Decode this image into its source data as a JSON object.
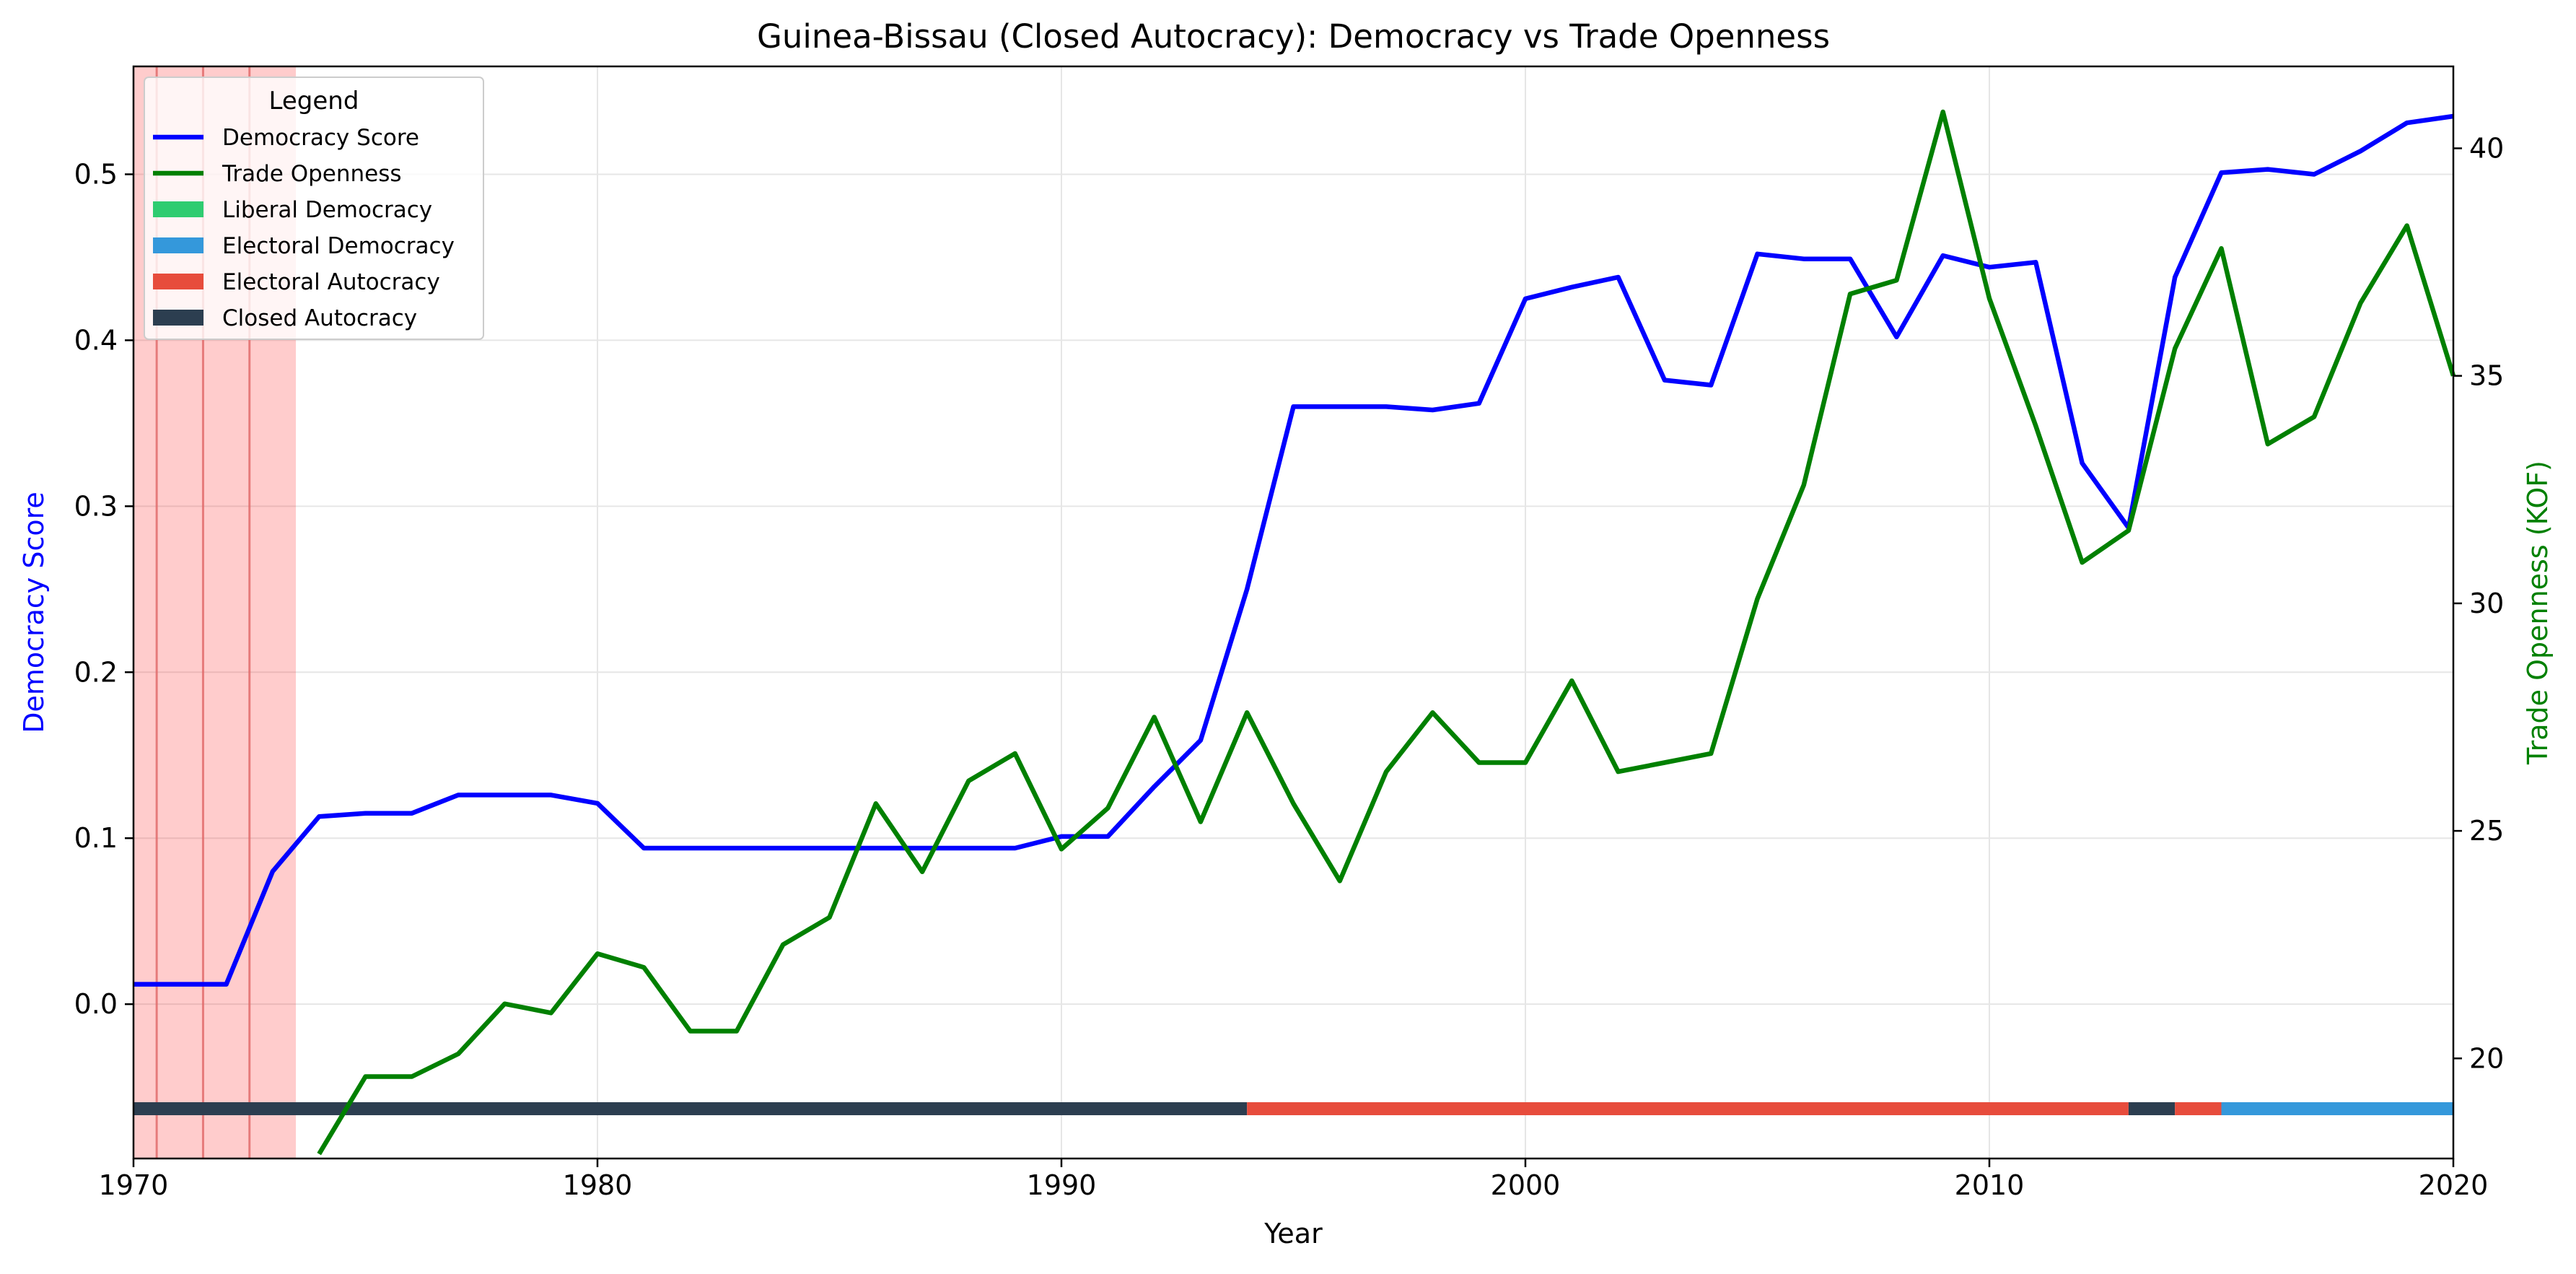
{
  "chart_data": {
    "type": "line",
    "title": "Guinea-Bissau (Closed Autocracy): Democracy vs Trade Openness",
    "xlabel": "Year",
    "ylabel_left": "Democracy Score",
    "ylabel_right": "Trade Openness (KOF)",
    "xlim": [
      1970,
      2020
    ],
    "ylim_left": [
      -0.093,
      0.565
    ],
    "ylim_right": [
      17.8,
      41.8
    ],
    "x_ticks": [
      1970,
      1980,
      1990,
      2000,
      2010,
      2020
    ],
    "y_left_ticks": [
      0.0,
      0.1,
      0.2,
      0.3,
      0.4,
      0.5
    ],
    "y_left_tick_labels": [
      "0.0",
      "0.1",
      "0.2",
      "0.3",
      "0.4",
      "0.5"
    ],
    "y_right_ticks": [
      20,
      25,
      30,
      35,
      40
    ],
    "y_right_tick_labels": [
      "20",
      "25",
      "30",
      "35",
      "40"
    ],
    "grid": true,
    "legend": {
      "title": "Legend",
      "position": "top-left",
      "entries": [
        {
          "label": "Democracy Score",
          "kind": "line",
          "color": "#0000ff"
        },
        {
          "label": "Trade Openness",
          "kind": "line",
          "color": "#008000"
        },
        {
          "label": "Liberal Democracy",
          "kind": "patch",
          "color": "#2ecc71"
        },
        {
          "label": "Electoral Democracy",
          "kind": "patch",
          "color": "#3498db"
        },
        {
          "label": "Electoral Autocracy",
          "kind": "patch",
          "color": "#e74c3c"
        },
        {
          "label": "Closed Autocracy",
          "kind": "patch",
          "color": "#2c3e50"
        }
      ]
    },
    "series": [
      {
        "name": "Democracy Score",
        "axis": "left",
        "color": "#0000ff",
        "x": [
          1970,
          1971,
          1972,
          1973,
          1974,
          1975,
          1976,
          1977,
          1978,
          1979,
          1980,
          1981,
          1982,
          1983,
          1984,
          1985,
          1986,
          1987,
          1988,
          1989,
          1990,
          1991,
          1992,
          1993,
          1994,
          1995,
          1996,
          1997,
          1998,
          1999,
          2000,
          2001,
          2002,
          2003,
          2004,
          2005,
          2006,
          2007,
          2008,
          2009,
          2010,
          2011,
          2012,
          2013,
          2014,
          2015,
          2016,
          2017,
          2018,
          2019,
          2020
        ],
        "y": [
          0.012,
          0.012,
          0.012,
          0.08,
          0.113,
          0.115,
          0.115,
          0.126,
          0.126,
          0.126,
          0.121,
          0.094,
          0.094,
          0.094,
          0.094,
          0.094,
          0.094,
          0.094,
          0.094,
          0.094,
          0.101,
          0.101,
          0.131,
          0.159,
          0.25,
          0.36,
          0.36,
          0.36,
          0.358,
          0.362,
          0.425,
          0.432,
          0.438,
          0.376,
          0.373,
          0.452,
          0.449,
          0.449,
          0.402,
          0.451,
          0.444,
          0.447,
          0.326,
          0.287,
          0.438,
          0.501,
          0.503,
          0.5,
          0.514,
          0.531,
          0.535
        ]
      },
      {
        "name": "Trade Openness",
        "axis": "right",
        "color": "#008000",
        "x": [
          1974,
          1975,
          1976,
          1977,
          1978,
          1979,
          1980,
          1981,
          1982,
          1983,
          1984,
          1985,
          1986,
          1987,
          1988,
          1989,
          1990,
          1991,
          1992,
          1993,
          1994,
          1995,
          1996,
          1997,
          1998,
          1999,
          2000,
          2001,
          2002,
          2003,
          2004,
          2005,
          2006,
          2007,
          2008,
          2009,
          2010,
          2011,
          2012,
          2013,
          2014,
          2015,
          2016,
          2017,
          2018,
          2019,
          2020
        ],
        "y": [
          17.9,
          19.6,
          19.6,
          20.1,
          21.2,
          21.0,
          22.3,
          22.0,
          20.6,
          20.6,
          22.5,
          23.1,
          25.6,
          24.1,
          26.1,
          26.7,
          24.6,
          25.5,
          27.5,
          25.2,
          27.6,
          25.6,
          23.9,
          26.3,
          27.6,
          26.5,
          26.5,
          28.3,
          26.3,
          26.5,
          26.7,
          30.1,
          32.6,
          36.8,
          37.1,
          40.8,
          36.7,
          33.9,
          30.9,
          31.6,
          35.6,
          37.8,
          33.5,
          34.1,
          36.6,
          38.3,
          35.0
        ]
      }
    ],
    "regime_bar": {
      "y_value": -0.063,
      "segments": [
        {
          "regime": "Closed Autocracy",
          "start": 1970,
          "end": 1994,
          "color": "#2c3e50"
        },
        {
          "regime": "Electoral Autocracy",
          "start": 1994,
          "end": 2013,
          "color": "#e74c3c"
        },
        {
          "regime": "Closed Autocracy",
          "start": 2013,
          "end": 2014,
          "color": "#2c3e50"
        },
        {
          "regime": "Electoral Autocracy",
          "start": 2014,
          "end": 2015,
          "color": "#e74c3c"
        },
        {
          "regime": "Electoral Democracy",
          "start": 2015,
          "end": 2020,
          "color": "#3498db"
        }
      ]
    },
    "highlight_span": {
      "start": 1970,
      "end": 1973.5,
      "color": "#ff0000",
      "opacity": 0.2
    },
    "highlight_lines": [
      1970.5,
      1971.5,
      1972.5
    ],
    "colors": {
      "ylabel_left": "#0000ff",
      "ylabel_right": "#008000",
      "grid": "#e6e6e6"
    }
  }
}
